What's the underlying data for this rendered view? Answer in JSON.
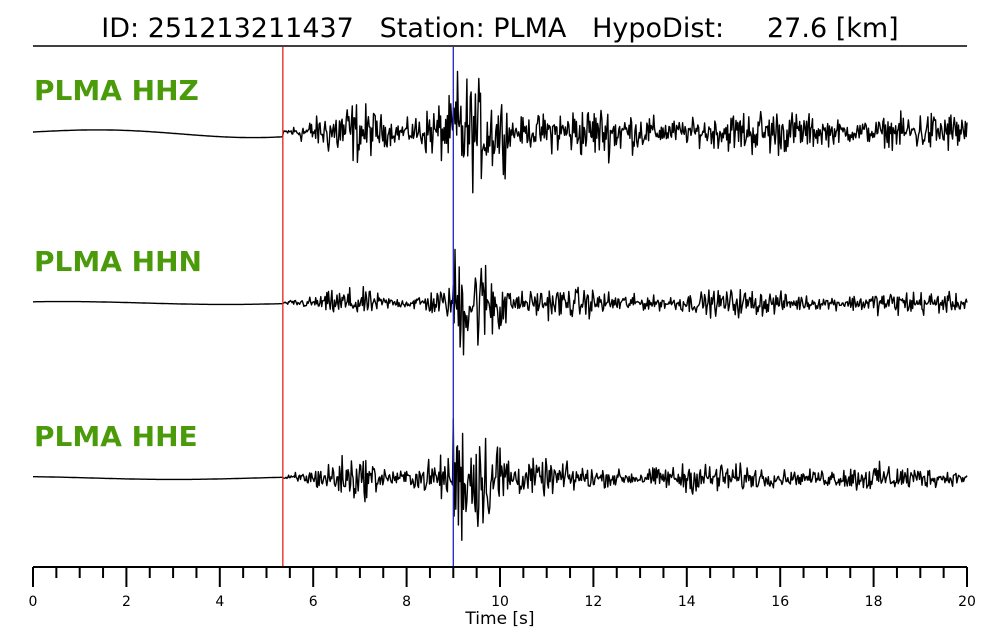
{
  "chart_data": {
    "type": "line",
    "title": "ID: 251213211437   Station: PLMA   HypoDist:     27.6 [km]",
    "xlabel": "Time [s]",
    "xlim": [
      0,
      20
    ],
    "x_major_ticks": [
      0,
      2,
      4,
      6,
      8,
      10,
      12,
      14,
      16,
      18,
      20
    ],
    "x_minor_step": 0.5,
    "p_pick_time": 5.35,
    "s_pick_time": 9.0,
    "p_pick_color": "#e8211b",
    "s_pick_color": "#1a22c8",
    "label_color": "#4a9a0a",
    "trace_color": "#000000",
    "channels": [
      {
        "name": "PLMA HHZ",
        "pre_amp": 0.07,
        "noise_amp": 0.42,
        "s_amp": 0.85,
        "coda_amp": 0.38
      },
      {
        "name": "PLMA HHN",
        "pre_amp": 0.02,
        "noise_amp": 0.2,
        "s_amp": 0.8,
        "coda_amp": 0.22
      },
      {
        "name": "PLMA HHE",
        "pre_amp": 0.02,
        "noise_amp": 0.3,
        "s_amp": 0.9,
        "coda_amp": 0.24
      }
    ]
  }
}
